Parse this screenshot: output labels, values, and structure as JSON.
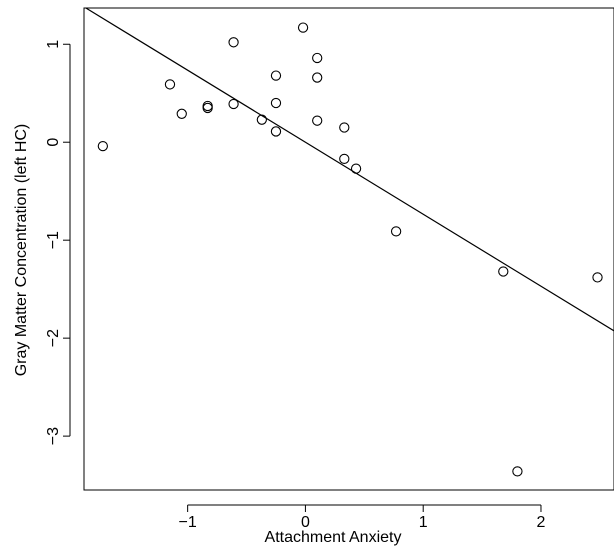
{
  "chart_data": {
    "type": "scatter",
    "xlabel": "Attachment Anxiety",
    "ylabel": "Gray Matter Concentration (left HC)",
    "xlim": [
      -1.88,
      2.62
    ],
    "ylim": [
      -3.55,
      1.37
    ],
    "xticks": [
      -1,
      0,
      1,
      2
    ],
    "xtick_labels": [
      "−1",
      "0",
      "1",
      "2"
    ],
    "yticks": [
      1,
      0,
      -1,
      -2,
      -3
    ],
    "ytick_labels": [
      "1",
      "0",
      "−1",
      "−2",
      "−3"
    ],
    "grid": false,
    "legend": "none",
    "points": [
      {
        "x": -1.72,
        "y": -0.04
      },
      {
        "x": -1.15,
        "y": 0.59
      },
      {
        "x": -1.05,
        "y": 0.29
      },
      {
        "x": -0.83,
        "y": 0.37
      },
      {
        "x": -0.83,
        "y": 0.35
      },
      {
        "x": -0.61,
        "y": 1.02
      },
      {
        "x": -0.61,
        "y": 0.39
      },
      {
        "x": -0.37,
        "y": 0.23
      },
      {
        "x": -0.25,
        "y": 0.68
      },
      {
        "x": -0.25,
        "y": 0.4
      },
      {
        "x": -0.25,
        "y": 0.11
      },
      {
        "x": -0.02,
        "y": 1.17
      },
      {
        "x": 0.1,
        "y": 0.86
      },
      {
        "x": 0.1,
        "y": 0.66
      },
      {
        "x": 0.1,
        "y": 0.22
      },
      {
        "x": 0.33,
        "y": 0.15
      },
      {
        "x": 0.33,
        "y": -0.17
      },
      {
        "x": 0.43,
        "y": -0.27
      },
      {
        "x": 0.77,
        "y": -0.91
      },
      {
        "x": 1.68,
        "y": -1.32
      },
      {
        "x": 1.8,
        "y": -3.36
      },
      {
        "x": 2.48,
        "y": -1.38
      }
    ],
    "fit_line": {
      "slope": -0.735,
      "intercept": 0.0
    }
  }
}
